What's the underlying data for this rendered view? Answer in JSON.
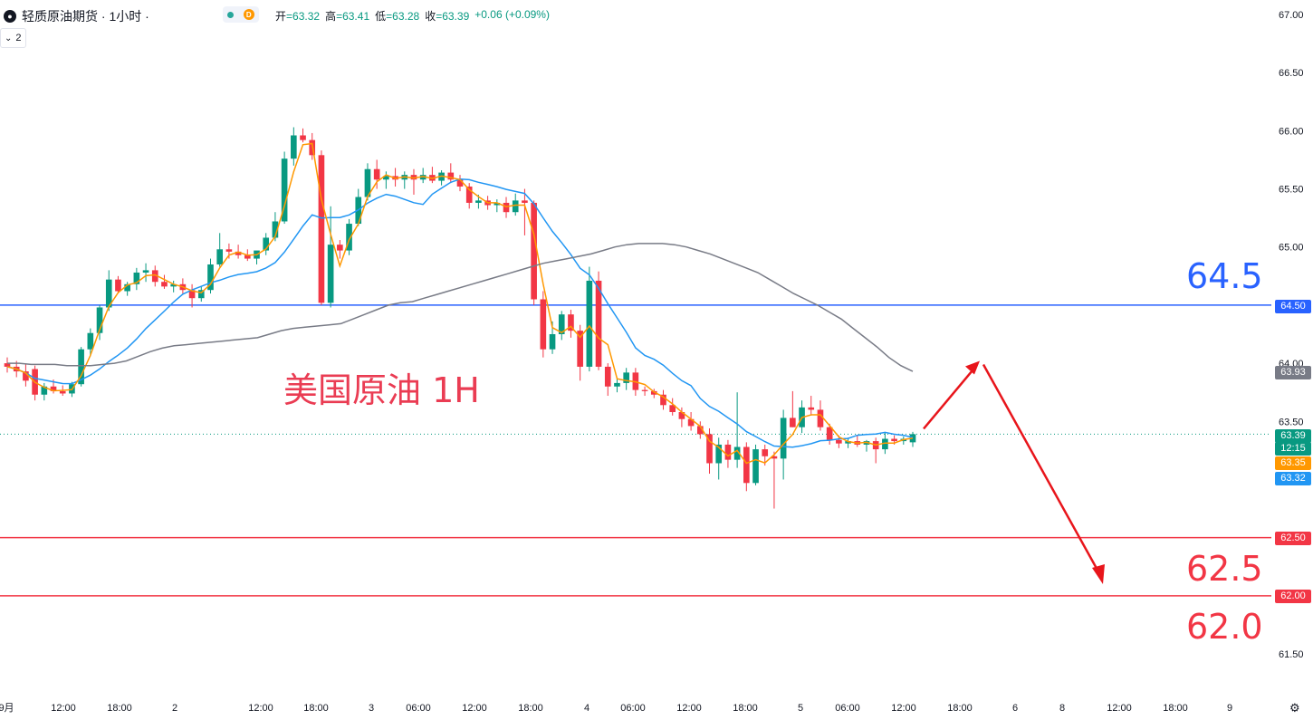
{
  "header": {
    "symbol_icon": "oil-drop-icon",
    "title": "轻质原油期货 · 1小时 ·",
    "status_dot": "market-open-icon",
    "status_badge": "D",
    "ohlc": {
      "open_label": "开",
      "open": "=63.32",
      "high_label": "高",
      "high": "=63.41",
      "low_label": "低",
      "low": "=63.28",
      "close_label": "收",
      "close": "=63.39",
      "change": "+0.06 (+0.09%)"
    },
    "indicator_toggle": "chevron-down-icon",
    "indicator_count": "2"
  },
  "annotations": {
    "chart_title": "美国原油 1H",
    "resistance": "64.5",
    "support1": "62.5",
    "support2": "62.0"
  },
  "price_badges": {
    "current": "63.39",
    "countdown": "12:15",
    "ma_fast": "63.35",
    "ma_mid": "63.32",
    "ma_slow": "63.93",
    "line_6450": "64.50",
    "line_6250": "62.50",
    "line_6200": "62.00"
  },
  "settings_icon": "gear-icon",
  "colors": {
    "up": "#089981",
    "down": "#f23645",
    "ma_fast": "#ff9800",
    "ma_mid": "#2196f3",
    "ma_slow": "#787b86",
    "resistance": "#2962ff",
    "support": "#f23645",
    "arrow": "#e8151b"
  },
  "chart_data": {
    "type": "candlestick",
    "y_ticks": [
      "67.00",
      "66.50",
      "66.00",
      "65.50",
      "65.00",
      "64.50",
      "64.00",
      "63.50",
      "63.00",
      "62.50",
      "62.00",
      "61.50"
    ],
    "ylim": [
      61.25,
      67.15
    ],
    "x_ticks": [
      "9月",
      "12:00",
      "18:00",
      "2",
      "12:00",
      "18:00",
      "3",
      "06:00",
      "12:00",
      "18:00",
      "4",
      "06:00",
      "12:00",
      "18:00",
      "5",
      "06:00",
      "12:00",
      "18:00",
      "6",
      "8",
      "12:00",
      "18:00",
      "9"
    ],
    "horizontal_lines": [
      {
        "label": "64.5",
        "price": 64.5,
        "color": "#2962ff"
      },
      {
        "label": "62.5",
        "price": 62.5,
        "color": "#f23645"
      },
      {
        "label": "62.0",
        "price": 62.0,
        "color": "#f23645"
      }
    ],
    "last_price": 63.39,
    "candles": [
      {
        "o": 64.0,
        "h": 64.05,
        "l": 63.92,
        "c": 63.97
      },
      {
        "o": 63.97,
        "h": 64.02,
        "l": 63.88,
        "c": 63.93
      },
      {
        "o": 63.93,
        "h": 63.99,
        "l": 63.8,
        "c": 63.85
      },
      {
        "o": 63.95,
        "h": 63.98,
        "l": 63.68,
        "c": 63.73
      },
      {
        "o": 63.73,
        "h": 63.83,
        "l": 63.68,
        "c": 63.8
      },
      {
        "o": 63.8,
        "h": 63.86,
        "l": 63.74,
        "c": 63.76
      },
      {
        "o": 63.76,
        "h": 63.81,
        "l": 63.72,
        "c": 63.74
      },
      {
        "o": 63.74,
        "h": 63.84,
        "l": 63.71,
        "c": 63.82
      },
      {
        "o": 63.82,
        "h": 64.14,
        "l": 63.8,
        "c": 64.12
      },
      {
        "o": 64.12,
        "h": 64.3,
        "l": 64.06,
        "c": 64.26
      },
      {
        "o": 64.26,
        "h": 64.5,
        "l": 64.2,
        "c": 64.48
      },
      {
        "o": 64.48,
        "h": 64.8,
        "l": 64.45,
        "c": 64.72
      },
      {
        "o": 64.72,
        "h": 64.75,
        "l": 64.6,
        "c": 64.62
      },
      {
        "o": 64.62,
        "h": 64.7,
        "l": 64.58,
        "c": 64.68
      },
      {
        "o": 64.68,
        "h": 64.82,
        "l": 64.63,
        "c": 64.78
      },
      {
        "o": 64.78,
        "h": 64.86,
        "l": 64.7,
        "c": 64.8
      },
      {
        "o": 64.8,
        "h": 64.84,
        "l": 64.66,
        "c": 64.7
      },
      {
        "o": 64.7,
        "h": 64.76,
        "l": 64.64,
        "c": 64.66
      },
      {
        "o": 64.66,
        "h": 64.71,
        "l": 64.61,
        "c": 64.68
      },
      {
        "o": 64.68,
        "h": 64.73,
        "l": 64.6,
        "c": 64.63
      },
      {
        "o": 64.63,
        "h": 64.68,
        "l": 64.48,
        "c": 64.56
      },
      {
        "o": 64.56,
        "h": 64.66,
        "l": 64.53,
        "c": 64.63
      },
      {
        "o": 64.63,
        "h": 64.9,
        "l": 64.6,
        "c": 64.85
      },
      {
        "o": 64.85,
        "h": 65.12,
        "l": 64.83,
        "c": 64.98
      },
      {
        "o": 64.98,
        "h": 65.03,
        "l": 64.9,
        "c": 64.96
      },
      {
        "o": 64.96,
        "h": 65.02,
        "l": 64.9,
        "c": 64.93
      },
      {
        "o": 64.93,
        "h": 64.98,
        "l": 64.88,
        "c": 64.9
      },
      {
        "o": 64.9,
        "h": 64.95,
        "l": 64.85,
        "c": 64.97
      },
      {
        "o": 64.97,
        "h": 65.12,
        "l": 64.93,
        "c": 65.08
      },
      {
        "o": 65.08,
        "h": 65.3,
        "l": 65.05,
        "c": 65.22
      },
      {
        "o": 65.22,
        "h": 65.82,
        "l": 65.2,
        "c": 65.76
      },
      {
        "o": 65.76,
        "h": 66.03,
        "l": 65.7,
        "c": 65.96
      },
      {
        "o": 65.96,
        "h": 66.02,
        "l": 65.9,
        "c": 65.92
      },
      {
        "o": 65.92,
        "h": 65.98,
        "l": 65.75,
        "c": 65.79
      },
      {
        "o": 65.79,
        "h": 65.83,
        "l": 64.5,
        "c": 64.52
      },
      {
        "o": 64.52,
        "h": 65.35,
        "l": 64.48,
        "c": 65.02
      },
      {
        "o": 65.02,
        "h": 65.06,
        "l": 64.9,
        "c": 64.97
      },
      {
        "o": 64.97,
        "h": 65.24,
        "l": 64.93,
        "c": 65.2
      },
      {
        "o": 65.2,
        "h": 65.5,
        "l": 65.18,
        "c": 65.43
      },
      {
        "o": 65.43,
        "h": 65.72,
        "l": 65.4,
        "c": 65.67
      },
      {
        "o": 65.67,
        "h": 65.75,
        "l": 65.5,
        "c": 65.58
      },
      {
        "o": 65.58,
        "h": 65.65,
        "l": 65.5,
        "c": 65.61
      },
      {
        "o": 65.61,
        "h": 65.68,
        "l": 65.52,
        "c": 65.58
      },
      {
        "o": 65.58,
        "h": 65.65,
        "l": 65.5,
        "c": 65.62
      },
      {
        "o": 65.62,
        "h": 65.67,
        "l": 65.45,
        "c": 65.58
      },
      {
        "o": 65.58,
        "h": 65.68,
        "l": 65.55,
        "c": 65.62
      },
      {
        "o": 65.62,
        "h": 65.69,
        "l": 65.55,
        "c": 65.57
      },
      {
        "o": 65.57,
        "h": 65.66,
        "l": 65.53,
        "c": 65.64
      },
      {
        "o": 65.64,
        "h": 65.72,
        "l": 65.55,
        "c": 65.58
      },
      {
        "o": 65.58,
        "h": 65.62,
        "l": 65.48,
        "c": 65.52
      },
      {
        "o": 65.52,
        "h": 65.55,
        "l": 65.33,
        "c": 65.38
      },
      {
        "o": 65.38,
        "h": 65.45,
        "l": 65.33,
        "c": 65.4
      },
      {
        "o": 65.4,
        "h": 65.44,
        "l": 65.32,
        "c": 65.36
      },
      {
        "o": 65.36,
        "h": 65.41,
        "l": 65.3,
        "c": 65.38
      },
      {
        "o": 65.38,
        "h": 65.43,
        "l": 65.25,
        "c": 65.3
      },
      {
        "o": 65.3,
        "h": 65.46,
        "l": 65.27,
        "c": 65.4
      },
      {
        "o": 65.4,
        "h": 65.5,
        "l": 65.1,
        "c": 65.38
      },
      {
        "o": 65.38,
        "h": 65.4,
        "l": 64.5,
        "c": 64.55
      },
      {
        "o": 64.55,
        "h": 64.62,
        "l": 64.05,
        "c": 64.12
      },
      {
        "o": 64.12,
        "h": 64.36,
        "l": 64.08,
        "c": 64.25
      },
      {
        "o": 64.25,
        "h": 64.45,
        "l": 64.2,
        "c": 64.42
      },
      {
        "o": 64.42,
        "h": 64.46,
        "l": 64.22,
        "c": 64.28
      },
      {
        "o": 64.28,
        "h": 64.33,
        "l": 63.85,
        "c": 63.97
      },
      {
        "o": 63.97,
        "h": 64.83,
        "l": 63.93,
        "c": 64.71
      },
      {
        "o": 64.71,
        "h": 64.79,
        "l": 63.94,
        "c": 63.97
      },
      {
        "o": 63.97,
        "h": 64.0,
        "l": 63.72,
        "c": 63.8
      },
      {
        "o": 63.8,
        "h": 63.87,
        "l": 63.75,
        "c": 63.83
      },
      {
        "o": 63.83,
        "h": 63.96,
        "l": 63.77,
        "c": 63.92
      },
      {
        "o": 63.92,
        "h": 63.96,
        "l": 63.72,
        "c": 63.77
      },
      {
        "o": 63.77,
        "h": 63.8,
        "l": 63.72,
        "c": 63.76
      },
      {
        "o": 63.76,
        "h": 63.78,
        "l": 63.7,
        "c": 63.73
      },
      {
        "o": 63.73,
        "h": 63.77,
        "l": 63.6,
        "c": 63.64
      },
      {
        "o": 63.64,
        "h": 63.7,
        "l": 63.55,
        "c": 63.58
      },
      {
        "o": 63.58,
        "h": 63.62,
        "l": 63.45,
        "c": 63.52
      },
      {
        "o": 63.52,
        "h": 63.58,
        "l": 63.42,
        "c": 63.46
      },
      {
        "o": 63.46,
        "h": 63.5,
        "l": 63.35,
        "c": 63.39
      },
      {
        "o": 63.39,
        "h": 63.44,
        "l": 63.05,
        "c": 63.14
      },
      {
        "o": 63.14,
        "h": 63.36,
        "l": 63.0,
        "c": 63.3
      },
      {
        "o": 63.3,
        "h": 63.34,
        "l": 63.1,
        "c": 63.17
      },
      {
        "o": 63.17,
        "h": 63.75,
        "l": 63.1,
        "c": 63.28
      },
      {
        "o": 63.28,
        "h": 63.32,
        "l": 62.9,
        "c": 62.97
      },
      {
        "o": 62.97,
        "h": 63.3,
        "l": 62.95,
        "c": 63.26
      },
      {
        "o": 63.26,
        "h": 63.3,
        "l": 63.12,
        "c": 63.2
      },
      {
        "o": 63.2,
        "h": 63.24,
        "l": 62.75,
        "c": 63.18
      },
      {
        "o": 63.18,
        "h": 63.6,
        "l": 63.0,
        "c": 63.53
      },
      {
        "o": 63.53,
        "h": 63.76,
        "l": 63.45,
        "c": 63.45
      },
      {
        "o": 63.45,
        "h": 63.68,
        "l": 63.4,
        "c": 63.62
      },
      {
        "o": 63.62,
        "h": 63.72,
        "l": 63.55,
        "c": 63.6
      },
      {
        "o": 63.6,
        "h": 63.68,
        "l": 63.42,
        "c": 63.45
      },
      {
        "o": 63.45,
        "h": 63.48,
        "l": 63.3,
        "c": 63.34
      },
      {
        "o": 63.34,
        "h": 63.38,
        "l": 63.27,
        "c": 63.31
      },
      {
        "o": 63.31,
        "h": 63.36,
        "l": 63.27,
        "c": 63.33
      },
      {
        "o": 63.33,
        "h": 63.38,
        "l": 63.28,
        "c": 63.3
      },
      {
        "o": 63.3,
        "h": 63.34,
        "l": 63.24,
        "c": 63.33
      },
      {
        "o": 63.33,
        "h": 63.36,
        "l": 63.14,
        "c": 63.26
      },
      {
        "o": 63.26,
        "h": 63.4,
        "l": 63.22,
        "c": 63.35
      },
      {
        "o": 63.35,
        "h": 63.38,
        "l": 63.3,
        "c": 63.33
      },
      {
        "o": 63.33,
        "h": 63.37,
        "l": 63.3,
        "c": 63.35
      },
      {
        "o": 63.32,
        "h": 63.41,
        "l": 63.28,
        "c": 63.39
      }
    ],
    "ma_slow": [
      64.0,
      64.0,
      63.99,
      63.99,
      63.99,
      63.98,
      63.98,
      63.98,
      63.99,
      64.0,
      64.02,
      64.06,
      64.1,
      64.13,
      64.15,
      64.16,
      64.17,
      64.18,
      64.19,
      64.2,
      64.21,
      64.22,
      64.25,
      64.28,
      64.3,
      64.31,
      64.32,
      64.33,
      64.34,
      64.38,
      64.42,
      64.46,
      64.5,
      64.52,
      64.53,
      64.56,
      64.59,
      64.62,
      64.65,
      64.68,
      64.71,
      64.74,
      64.77,
      64.8,
      64.83,
      64.86,
      64.88,
      64.9,
      64.92,
      64.94,
      64.97,
      65.0,
      65.02,
      65.03,
      65.03,
      65.03,
      65.02,
      65.0,
      64.97,
      64.94,
      64.9,
      64.86,
      64.82,
      64.78,
      64.72,
      64.66,
      64.6,
      64.55,
      64.5,
      64.44,
      64.38,
      64.3,
      64.22,
      64.14,
      64.05,
      63.98,
      63.93
    ]
  }
}
